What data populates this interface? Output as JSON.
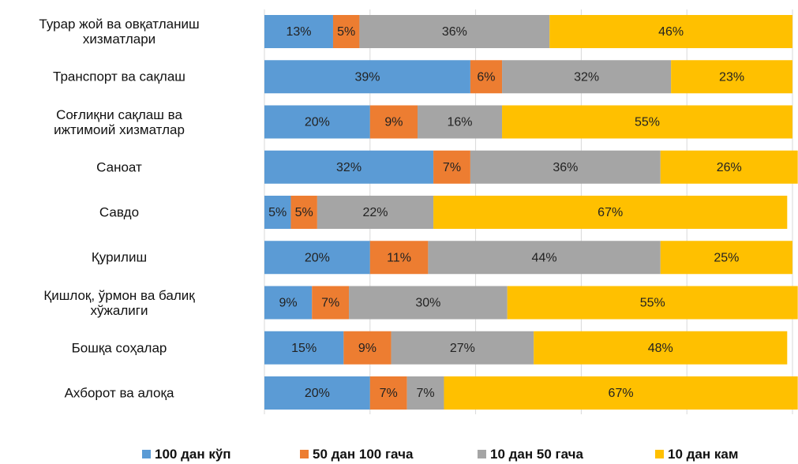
{
  "chart_data": {
    "type": "stacked_bar_horizontal",
    "categories": [
      "Турар жой ва овқатланиш\nхизматлари",
      "Транспорт ва сақлаш",
      "Соғлиқни сақлаш ва\nижтимоий хизматлар",
      "Саноат",
      "Савдо",
      "Қурилиш",
      "Қишлоқ, ўрмон ва балиқ\nхўжалиги",
      "Бошқа соҳалар",
      "Ахборот ва алоқа"
    ],
    "series": [
      {
        "name": "100 дан кўп",
        "color": "#5b9bd5",
        "values": [
          13,
          39,
          20,
          32,
          5,
          20,
          9,
          15,
          20
        ],
        "value_labels": [
          "13%",
          "39%",
          "20%",
          "32%",
          "5%",
          "20%",
          "9%",
          "15%",
          "20%"
        ]
      },
      {
        "name": "50 дан 100 гача",
        "color": "#ed7d31",
        "values": [
          5,
          6,
          9,
          7,
          5,
          11,
          7,
          9,
          7
        ],
        "value_labels": [
          "5%",
          "6%",
          "9%",
          "7%",
          "5%",
          "11%",
          "7%",
          "9%",
          "7%"
        ]
      },
      {
        "name": "10 дан 50 гача",
        "color": "#a5a5a5",
        "values": [
          36,
          32,
          16,
          36,
          22,
          44,
          30,
          27,
          7
        ],
        "value_labels": [
          "36%",
          "32%",
          "16%",
          "36%",
          "22%",
          "44%",
          "30%",
          "27%",
          "7%"
        ]
      },
      {
        "name": "10 дан кам",
        "color": "#ffc000",
        "values": [
          46,
          23,
          55,
          26,
          67,
          25,
          55,
          48,
          67
        ],
        "value_labels": [
          "46%",
          "23%",
          "55%",
          "26%",
          "67%",
          "25%",
          "55%",
          "48%",
          "67%"
        ]
      }
    ],
    "xlim": [
      0,
      100
    ],
    "xticks": [
      0,
      20,
      40,
      60,
      80,
      100
    ],
    "grid": true,
    "legend": "bottom"
  }
}
